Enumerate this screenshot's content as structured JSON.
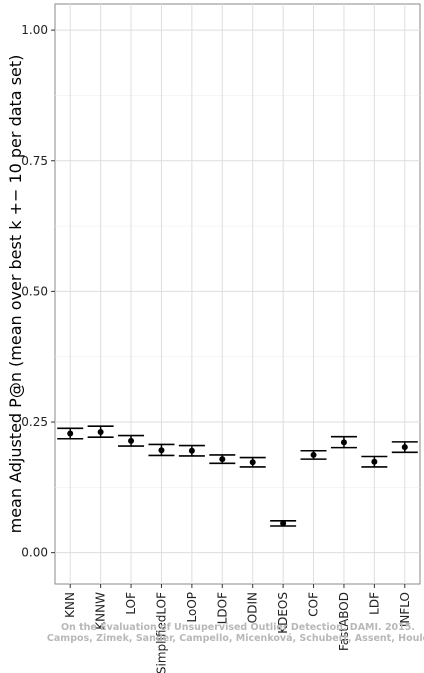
{
  "chart_data": {
    "type": "errorbar",
    "title": "",
    "xlabel": "",
    "ylabel": "mean Adjusted P@n (mean over best k +− 10 per data set)",
    "ylim": [
      -0.06,
      1.05
    ],
    "yticks": [
      "0.00",
      "0.25",
      "0.50",
      "0.75",
      "1.00"
    ],
    "grid": true,
    "categories": [
      "KNN",
      "KNNW",
      "LOF",
      "SimplifiedLOF",
      "LoOP",
      "LDOF",
      "ODIN",
      "KDEOS",
      "COF",
      "FastABOD",
      "LDF",
      "INFLO"
    ],
    "series": [
      {
        "mean": [
          0.228,
          0.231,
          0.214,
          0.196,
          0.195,
          0.179,
          0.173,
          0.056,
          0.187,
          0.211,
          0.174,
          0.202
        ],
        "lower": [
          0.218,
          0.221,
          0.204,
          0.186,
          0.185,
          0.171,
          0.164,
          0.051,
          0.179,
          0.201,
          0.164,
          0.192
        ],
        "upper": [
          0.238,
          0.242,
          0.224,
          0.207,
          0.205,
          0.187,
          0.182,
          0.061,
          0.195,
          0.222,
          0.184,
          0.212
        ]
      }
    ],
    "watermark": [
      "On the Evaluation of Unsupervised Outlier Detection. DAMI. 2015.",
      "Campos, Zimek, Sander, Campello, Micenková, Schubert, Assent, Houle"
    ]
  }
}
